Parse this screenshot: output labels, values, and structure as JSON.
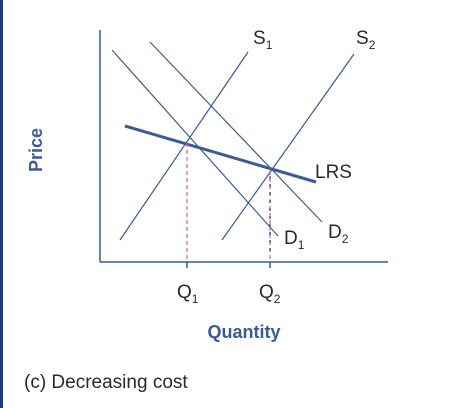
{
  "axes": {
    "y_label": "Price",
    "x_label": "Quantity"
  },
  "curves": {
    "s1": {
      "name": "S",
      "sub": "1"
    },
    "s2": {
      "name": "S",
      "sub": "2"
    },
    "d1": {
      "name": "D",
      "sub": "1"
    },
    "d2": {
      "name": "D",
      "sub": "2"
    },
    "lrs": {
      "name": "LRS"
    }
  },
  "quantities": {
    "q1": {
      "name": "Q",
      "sub": "1"
    },
    "q2": {
      "name": "Q",
      "sub": "2"
    }
  },
  "caption": "(c) Decreasing cost",
  "colors": {
    "curve": "#3a5a9a",
    "lrs": "#3a5a9a",
    "axis": "#3a5a9a",
    "guide": "#e05aa8",
    "text": "#2a2a2a",
    "border": "#1f3a7a"
  }
}
